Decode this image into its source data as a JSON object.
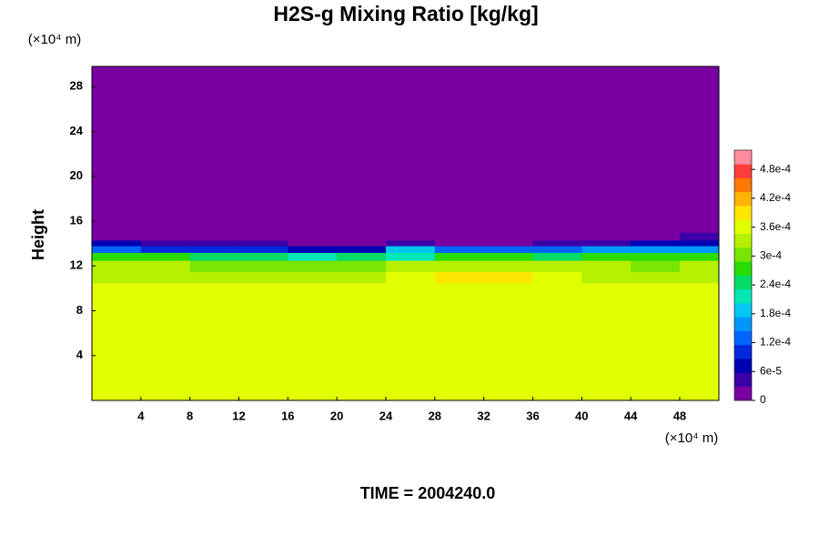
{
  "chart_data": {
    "type": "heatmap",
    "title": "H2S-g Mixing Ratio [kg/kg]",
    "y_unit": "(×10⁴ m)",
    "x_unit": "(×10⁴ m)",
    "ylabel": "Height",
    "footer": "TIME = 2004240.0",
    "xlim": [
      0,
      51.2
    ],
    "ylim": [
      0,
      29.8
    ],
    "xticks": [
      4,
      8,
      12,
      16,
      20,
      24,
      28,
      32,
      36,
      40,
      44,
      48
    ],
    "yticks": [
      4,
      8,
      12,
      16,
      20,
      24,
      28
    ],
    "xbins": [
      0,
      4,
      8,
      12,
      16,
      20,
      24,
      28,
      32,
      36,
      40,
      44,
      48,
      51.2
    ],
    "ybins": [
      0,
      10.5,
      11.5,
      12.5,
      13.2,
      13.8,
      14.3,
      15,
      29.8
    ],
    "z": [
      [
        0.00035,
        0.00035,
        0.00035,
        0.00035,
        0.00035,
        0.00035,
        0.00035,
        0.00035,
        0.00035,
        0.00035,
        0.00035,
        0.00035,
        0.00035
      ],
      [
        0.00034,
        0.00034,
        0.00034,
        0.00034,
        0.00034,
        0.00034,
        0.00036,
        0.0004,
        0.00039,
        0.00035,
        0.00034,
        0.00034,
        0.00034
      ],
      [
        0.00033,
        0.00032,
        0.00031,
        0.0003,
        0.0003,
        0.00031,
        0.00032,
        0.00033,
        0.00033,
        0.00032,
        0.00032,
        0.00031,
        0.00032
      ],
      [
        0.00027,
        0.00026,
        0.00025,
        0.00024,
        0.00022,
        0.00024,
        0.00021,
        0.00026,
        0.00026,
        0.00025,
        0.00027,
        0.00026,
        0.00027
      ],
      [
        0.00012,
        0.00011,
        0.0001,
        9e-05,
        6e-05,
        8e-05,
        0.0002,
        0.00012,
        0.00012,
        0.00013,
        0.00015,
        0.00015,
        0.00016
      ],
      [
        6e-05,
        4e-05,
        3e-05,
        3e-05,
        2e-05,
        2e-05,
        4e-05,
        0,
        2e-05,
        3e-05,
        4e-05,
        6e-05,
        7e-05
      ],
      [
        2e-05,
        0,
        0,
        0,
        0,
        0,
        0,
        0,
        0,
        0,
        0,
        0,
        3e-05
      ],
      [
        0,
        0,
        0,
        0,
        0,
        0,
        0,
        0,
        0,
        0,
        0,
        0,
        0
      ]
    ],
    "zlim": [
      0,
      0.00052
    ],
    "zticks": [
      0,
      {
        "value": 6e-05,
        "label": "6e-5"
      },
      {
        "value": 0.00012,
        "label": "1.2e-4"
      },
      {
        "value": 0.00018,
        "label": "1.8e-4"
      },
      {
        "value": 0.00024,
        "label": "2.4e-4"
      },
      {
        "value": 0.0003,
        "label": "3e-4"
      },
      {
        "value": 0.00036,
        "label": "3.6e-4"
      },
      {
        "value": 0.00042,
        "label": "4.2e-4"
      },
      {
        "value": 0.00048,
        "label": "4.8e-4"
      }
    ],
    "colormap": [
      "#7800a0",
      "#3c00a8",
      "#0000b4",
      "#0028dc",
      "#0064ff",
      "#0096ff",
      "#00c8f0",
      "#00e6b4",
      "#00dc64",
      "#28dc00",
      "#78e600",
      "#b4f000",
      "#e0ff00",
      "#ffe600",
      "#ffb400",
      "#ff7800",
      "#ff3c3c",
      "#ff8ca0"
    ]
  }
}
